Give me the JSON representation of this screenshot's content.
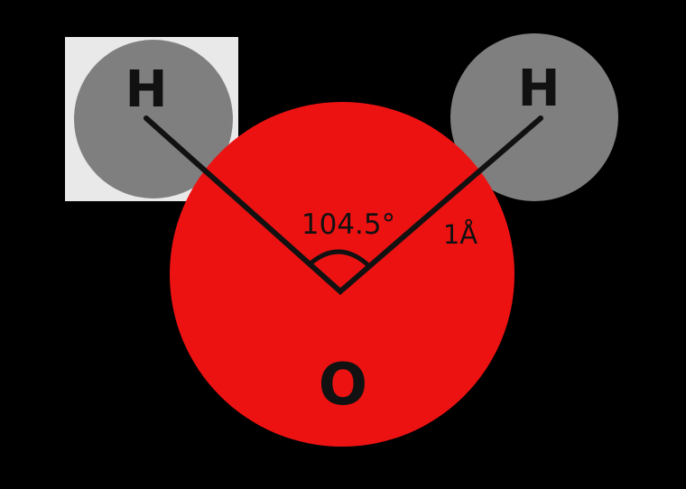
{
  "diagram": {
    "atoms": {
      "hydrogen_left": {
        "label": "H"
      },
      "hydrogen_right": {
        "label": "H"
      },
      "oxygen": {
        "label": "O"
      }
    },
    "bond_angle_label": "104.5°",
    "bond_length_label": "1Å"
  },
  "colors": {
    "background": "#000000",
    "oxygen_fill": "#ed1212",
    "hydrogen_fill": "#7f7f7f",
    "highlight_box": "#e9e9e9",
    "bond_line": "#111111",
    "label_text": "#111111"
  }
}
